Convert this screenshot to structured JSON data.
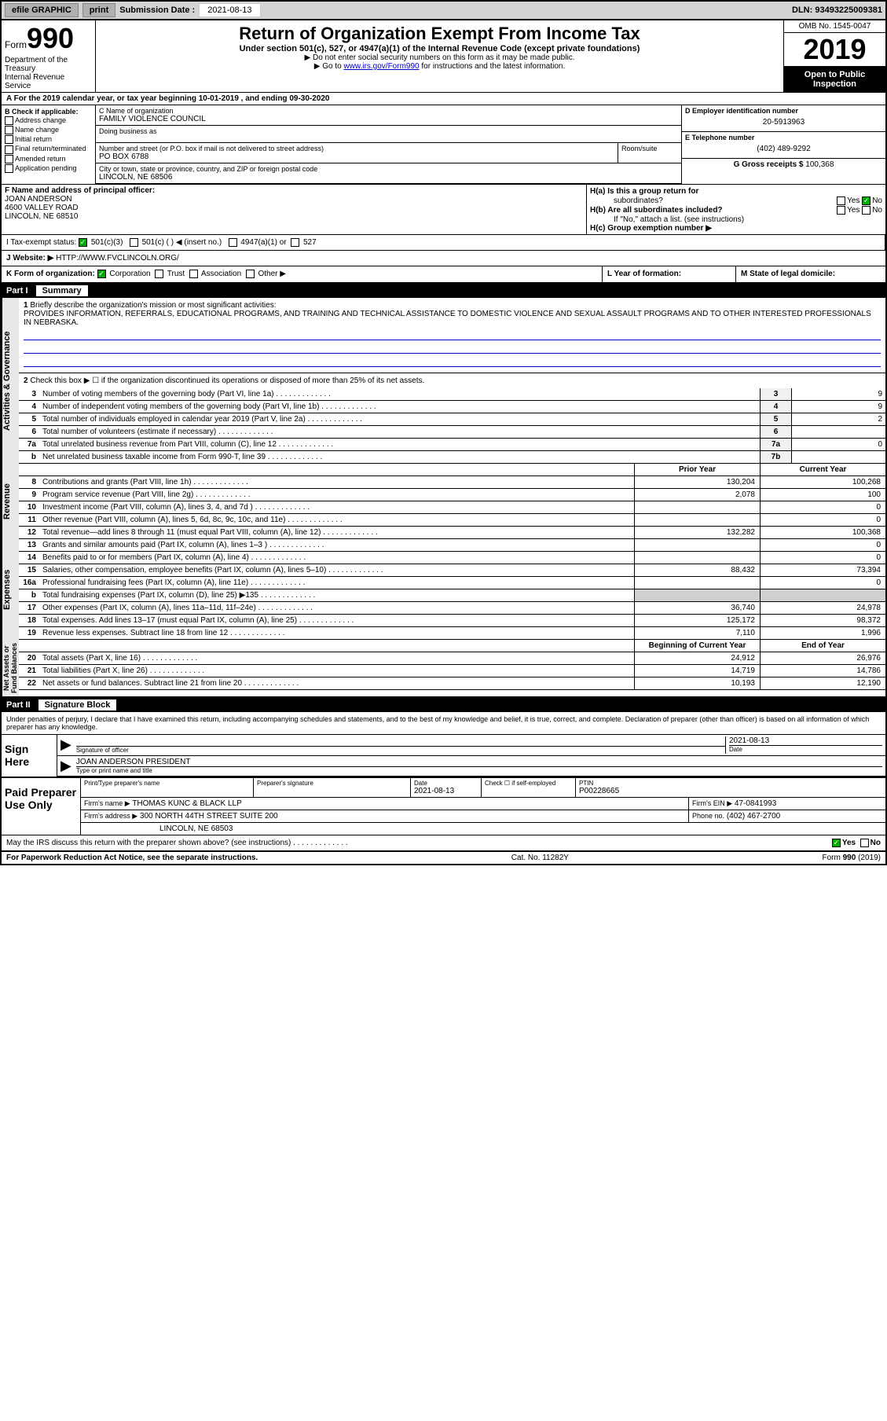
{
  "toolbar": {
    "efile": "efile GRAPHIC",
    "print": "print",
    "sub_label": "Submission Date :",
    "sub_date": "2021-08-13",
    "dln": "DLN: 93493225009381"
  },
  "header": {
    "form": "Form",
    "form_num": "990",
    "dept": "Department of the Treasury\nInternal Revenue Service",
    "title": "Return of Organization Exempt From Income Tax",
    "subtitle": "Under section 501(c), 527, or 4947(a)(1) of the Internal Revenue Code (except private foundations)",
    "instr1": "▶ Do not enter social security numbers on this form as it may be made public.",
    "instr2_pre": "▶ Go to ",
    "instr2_link": "www.irs.gov/Form990",
    "instr2_post": " for instructions and the latest information.",
    "omb": "OMB No. 1545-0047",
    "year": "2019",
    "open": "Open to Public\nInspection"
  },
  "line_a": "A For the 2019 calendar year, or tax year beginning 10-01-2019   , and ending 09-30-2020",
  "box_b": {
    "title": "B Check if applicable:",
    "opts": [
      "Address change",
      "Name change",
      "Initial return",
      "Final return/terminated",
      "Amended return",
      "Application pending"
    ]
  },
  "box_c": {
    "name_label": "C Name of organization",
    "name": "FAMILY VIOLENCE COUNCIL",
    "dba_label": "Doing business as",
    "addr_label": "Number and street (or P.O. box if mail is not delivered to street address)",
    "addr": "PO BOX 6788",
    "room_label": "Room/suite",
    "city_label": "City or town, state or province, country, and ZIP or foreign postal code",
    "city": "LINCOLN, NE  68506"
  },
  "box_d": {
    "label": "D Employer identification number",
    "val": "20-5913963"
  },
  "box_e": {
    "label": "E Telephone number",
    "val": "(402) 489-9292"
  },
  "box_g": {
    "label": "G Gross receipts $",
    "val": "100,368"
  },
  "box_f": {
    "label": "F  Name and address of principal officer:",
    "lines": [
      "JOAN ANDERSON",
      "4600 VALLEY ROAD",
      "LINCOLN, NE  68510"
    ]
  },
  "box_h": {
    "ha": "H(a)  Is this a group return for",
    "ha2": "subordinates?",
    "hb": "H(b)  Are all subordinates included?",
    "hnote": "If \"No,\" attach a list. (see instructions)",
    "hc": "H(c)  Group exemption number ▶",
    "yes": "Yes",
    "no": "No"
  },
  "row_i": {
    "label": "I  Tax-exempt status:",
    "opts": [
      "501(c)(3)",
      "501(c) (  ) ◀ (insert no.)",
      "4947(a)(1) or",
      "527"
    ]
  },
  "row_j": {
    "label": "J  Website: ▶",
    "val": "HTTP://WWW.FVCLINCOLN.ORG/"
  },
  "row_k": {
    "label": "K Form of organization:",
    "opts": [
      "Corporation",
      "Trust",
      "Association",
      "Other ▶"
    ]
  },
  "row_l": "L Year of formation:",
  "row_m": "M State of legal domicile:",
  "part1": {
    "num": "Part I",
    "title": "Summary"
  },
  "q1": {
    "num": "1",
    "text": "Briefly describe the organization's mission or most significant activities:",
    "mission": "PROVIDES INFORMATION, REFERRALS, EDUCATIONAL PROGRAMS, AND TRAINING AND TECHNICAL ASSISTANCE TO DOMESTIC VIOLENCE AND SEXUAL ASSAULT PROGRAMS AND TO OTHER INTERESTED PROFESSIONALS IN NEBRASKA."
  },
  "q2": {
    "num": "2",
    "text": "Check this box ▶ ☐  if the organization discontinued its operations or disposed of more than 25% of its net assets."
  },
  "activities_rows": [
    {
      "n": "3",
      "d": "Number of voting members of the governing body (Part VI, line 1a)",
      "box": "3",
      "v": "9"
    },
    {
      "n": "4",
      "d": "Number of independent voting members of the governing body (Part VI, line 1b)",
      "box": "4",
      "v": "9"
    },
    {
      "n": "5",
      "d": "Total number of individuals employed in calendar year 2019 (Part V, line 2a)",
      "box": "5",
      "v": "2"
    },
    {
      "n": "6",
      "d": "Total number of volunteers (estimate if necessary)",
      "box": "6",
      "v": ""
    },
    {
      "n": "7a",
      "d": "Total unrelated business revenue from Part VIII, column (C), line 12",
      "box": "7a",
      "v": "0"
    },
    {
      "n": "b",
      "d": "Net unrelated business taxable income from Form 990-T, line 39",
      "box": "7b",
      "v": ""
    }
  ],
  "twoColHeader": {
    "py": "Prior Year",
    "cy": "Current Year"
  },
  "revenue_rows": [
    {
      "n": "8",
      "d": "Contributions and grants (Part VIII, line 1h)",
      "py": "130,204",
      "cy": "100,268"
    },
    {
      "n": "9",
      "d": "Program service revenue (Part VIII, line 2g)",
      "py": "2,078",
      "cy": "100"
    },
    {
      "n": "10",
      "d": "Investment income (Part VIII, column (A), lines 3, 4, and 7d )",
      "py": "",
      "cy": "0"
    },
    {
      "n": "11",
      "d": "Other revenue (Part VIII, column (A), lines 5, 6d, 8c, 9c, 10c, and 11e)",
      "py": "",
      "cy": "0"
    },
    {
      "n": "12",
      "d": "Total revenue—add lines 8 through 11 (must equal Part VIII, column (A), line 12)",
      "py": "132,282",
      "cy": "100,368"
    }
  ],
  "expense_rows": [
    {
      "n": "13",
      "d": "Grants and similar amounts paid (Part IX, column (A), lines 1–3 )",
      "py": "",
      "cy": "0"
    },
    {
      "n": "14",
      "d": "Benefits paid to or for members (Part IX, column (A), line 4)",
      "py": "",
      "cy": "0"
    },
    {
      "n": "15",
      "d": "Salaries, other compensation, employee benefits (Part IX, column (A), lines 5–10)",
      "py": "88,432",
      "cy": "73,394"
    },
    {
      "n": "16a",
      "d": "Professional fundraising fees (Part IX, column (A), line 11e)",
      "py": "",
      "cy": "0"
    },
    {
      "n": "b",
      "d": "Total fundraising expenses (Part IX, column (D), line 25) ▶135",
      "py": "GRAY",
      "cy": "GRAY"
    },
    {
      "n": "17",
      "d": "Other expenses (Part IX, column (A), lines 11a–11d, 11f–24e)",
      "py": "36,740",
      "cy": "24,978"
    },
    {
      "n": "18",
      "d": "Total expenses. Add lines 13–17 (must equal Part IX, column (A), line 25)",
      "py": "125,172",
      "cy": "98,372"
    },
    {
      "n": "19",
      "d": "Revenue less expenses. Subtract line 18 from line 12",
      "py": "7,110",
      "cy": "1,996"
    }
  ],
  "netHeader": {
    "py": "Beginning of Current Year",
    "cy": "End of Year"
  },
  "net_rows": [
    {
      "n": "20",
      "d": "Total assets (Part X, line 16)",
      "py": "24,912",
      "cy": "26,976"
    },
    {
      "n": "21",
      "d": "Total liabilities (Part X, line 26)",
      "py": "14,719",
      "cy": "14,786"
    },
    {
      "n": "22",
      "d": "Net assets or fund balances. Subtract line 21 from line 20",
      "py": "10,193",
      "cy": "12,190"
    }
  ],
  "sideLabels": {
    "ag": "Activities & Governance",
    "rev": "Revenue",
    "exp": "Expenses",
    "net": "Net Assets or\nFund Balances"
  },
  "part2": {
    "num": "Part II",
    "title": "Signature Block"
  },
  "sig_text": "Under penalties of perjury, I declare that I have examined this return, including accompanying schedules and statements, and to the best of my knowledge and belief, it is true, correct, and complete. Declaration of preparer (other than officer) is based on all information of which preparer has any knowledge.",
  "sig": {
    "here": "Sign Here",
    "officer_label": "Signature of officer",
    "date_label": "Date",
    "date": "2021-08-13",
    "name": "JOAN ANDERSON PRESIDENT",
    "name_label": "Type or print name and title"
  },
  "prep": {
    "title": "Paid Preparer Use Only",
    "h1": "Print/Type preparer's name",
    "h2": "Preparer's signature",
    "h3": "Date",
    "date": "2021-08-13",
    "h4": "Check ☐  if self-employed",
    "h5": "PTIN",
    "ptin": "P00228665",
    "firm_label": "Firm's name    ▶",
    "firm": "THOMAS KUNC & BLACK LLP",
    "ein_label": "Firm's EIN ▶",
    "ein": "47-0841993",
    "addr_label": "Firm's address ▶",
    "addr1": "300 NORTH 44TH STREET SUITE 200",
    "addr2": "LINCOLN, NE  68503",
    "phone_label": "Phone no.",
    "phone": "(402) 467-2700"
  },
  "discuss": "May the IRS discuss this return with the preparer shown above? (see instructions)",
  "footer": {
    "pra": "For Paperwork Reduction Act Notice, see the separate instructions.",
    "cat": "Cat. No. 11282Y",
    "form": "Form 990 (2019)"
  }
}
